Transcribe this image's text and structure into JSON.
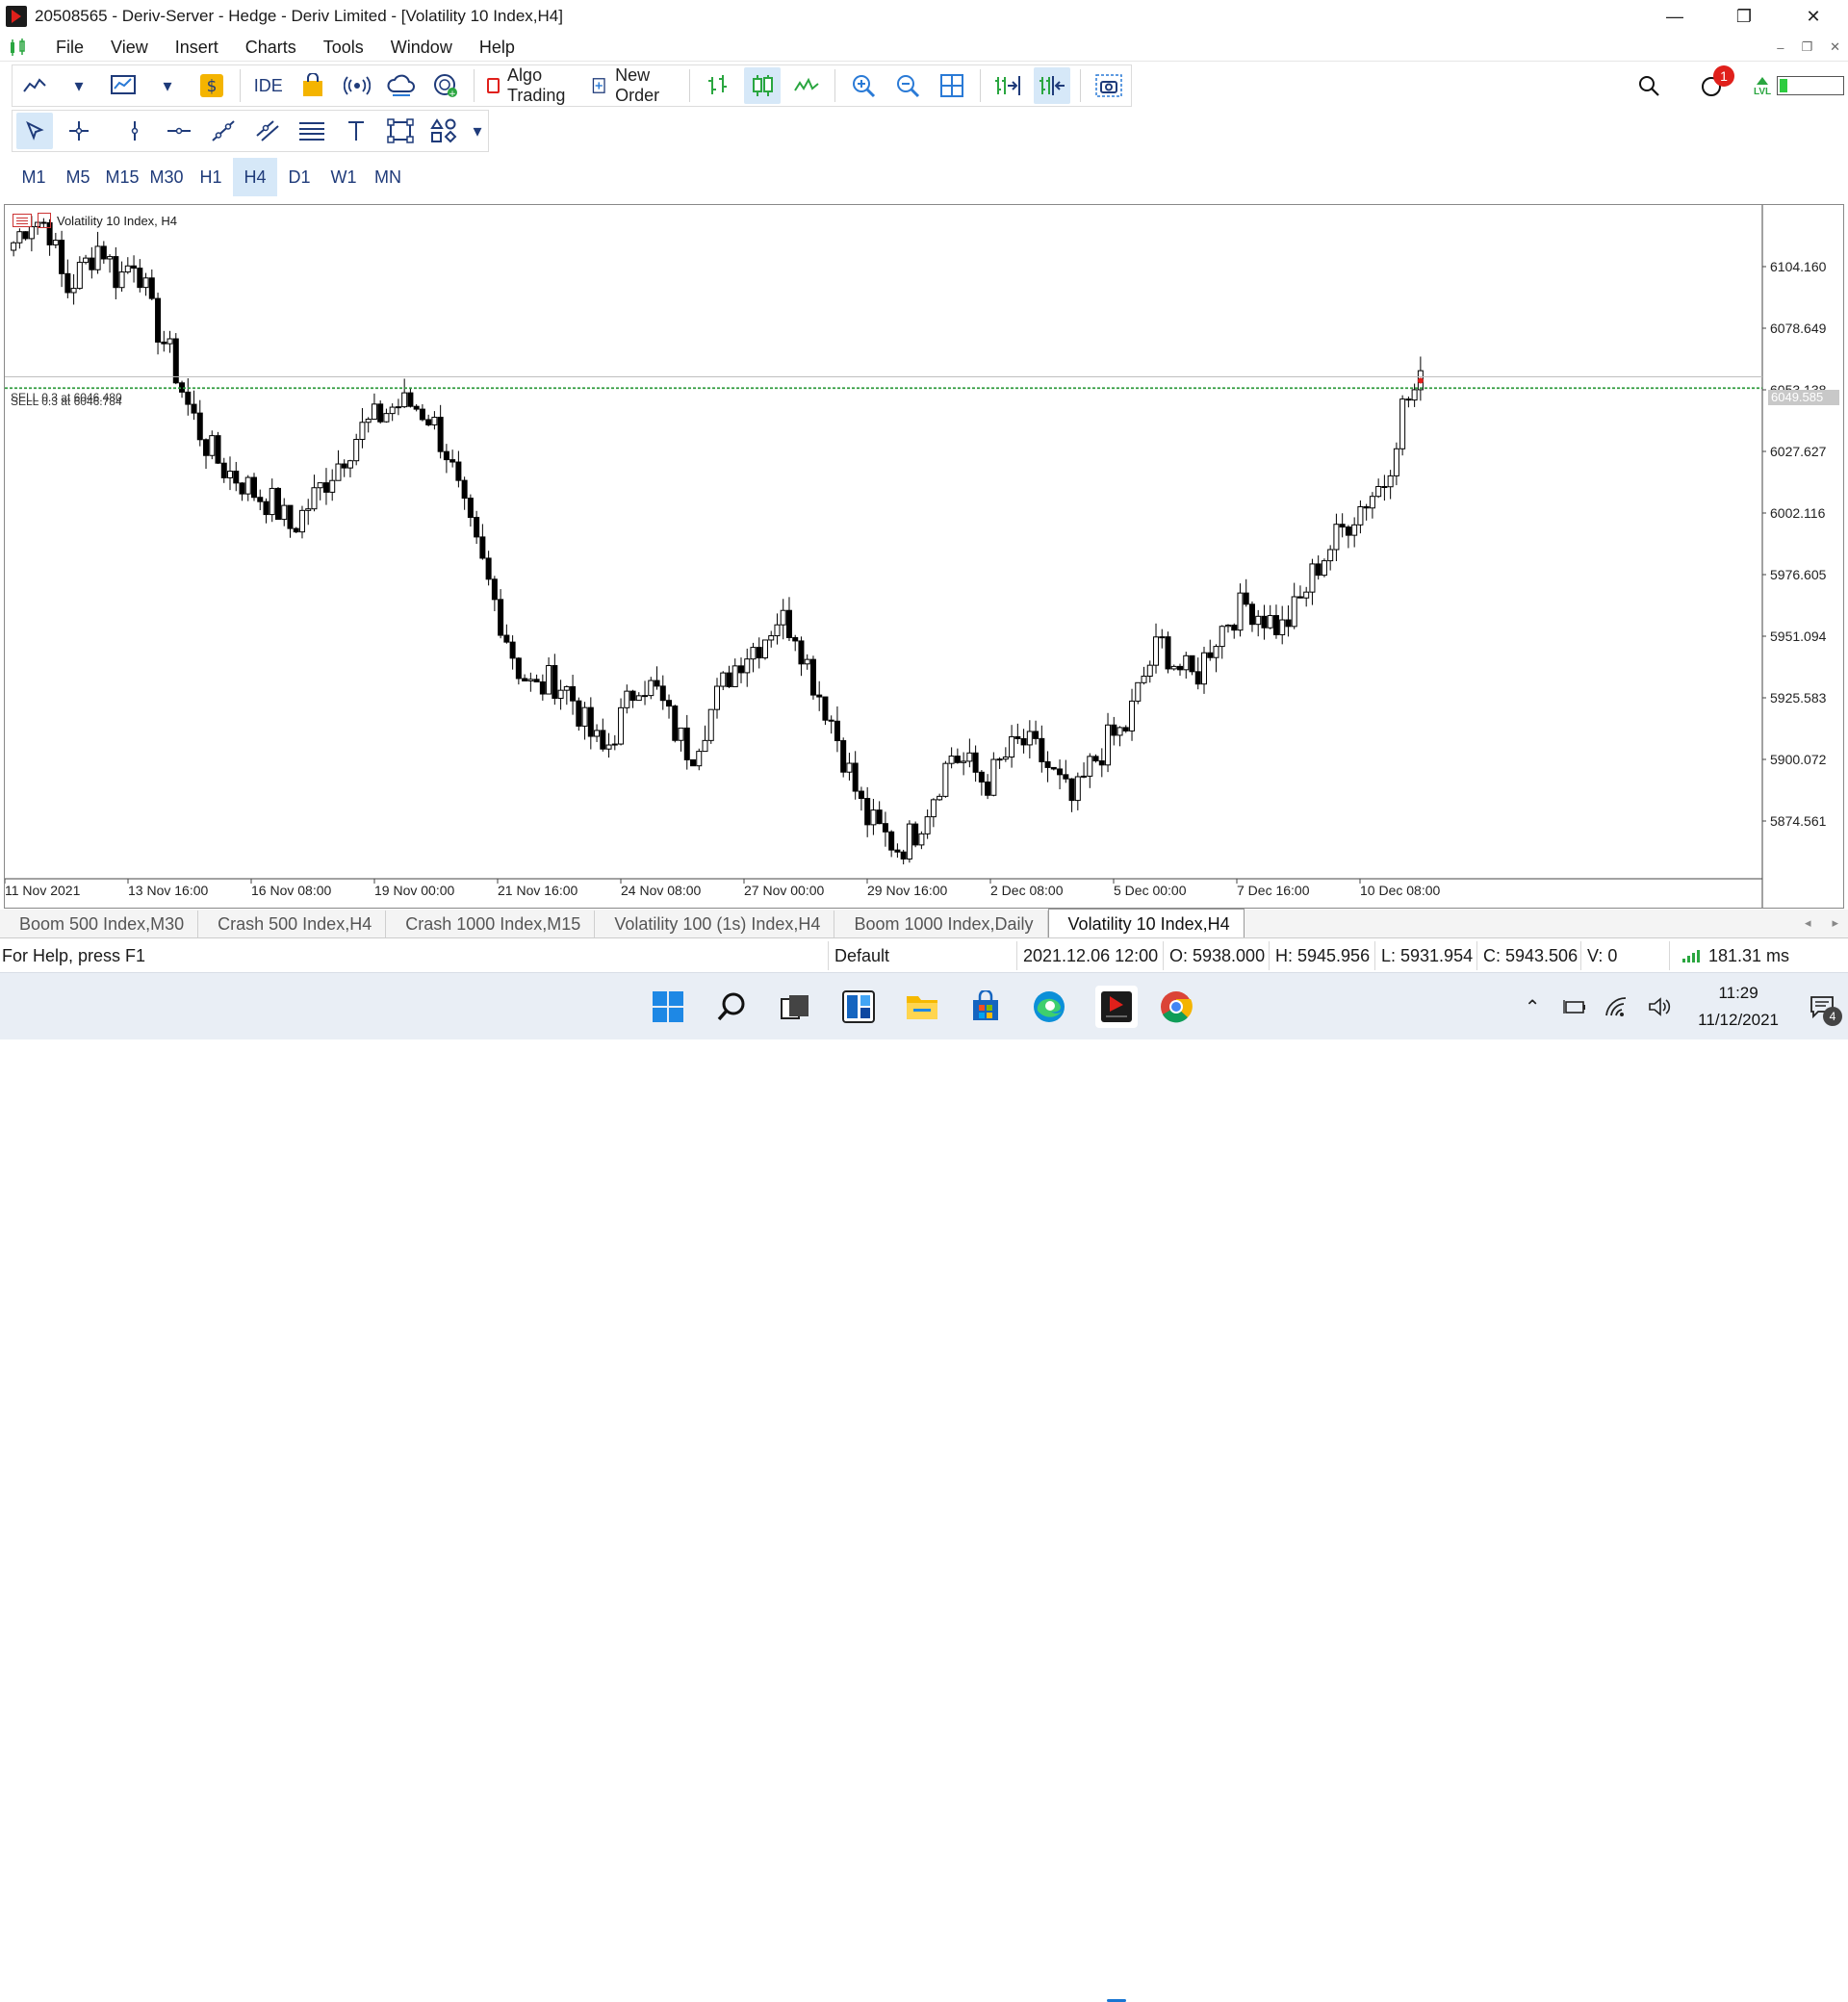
{
  "window": {
    "title": "20508565 - Deriv-Server - Hedge - Deriv Limited - [Volatility 10 Index,H4]",
    "controls": [
      "minimize-icon",
      "restore-icon",
      "close-icon"
    ]
  },
  "menu": {
    "items": [
      "File",
      "View",
      "Insert",
      "Charts",
      "Tools",
      "Window",
      "Help"
    ]
  },
  "toolbar": {
    "ide_label": "IDE",
    "algo_trading_label": "Algo Trading",
    "new_order_label": "New Order",
    "notification_count": "1",
    "lvl_label": "LVL"
  },
  "timeframes": {
    "items": [
      "M1",
      "M5",
      "M15",
      "M30",
      "H1",
      "H4",
      "D1",
      "W1",
      "MN"
    ],
    "active": "H4"
  },
  "chart": {
    "symbol_label": "Volatility 10 Index, H4",
    "orders": [
      "SELL 0.3 at 6046.480",
      "SELL 0.3 at 6046.784"
    ],
    "current_price": "6049.585",
    "colors": {
      "bull": "#ffffff",
      "bear": "#000000",
      "order_line": "#2e9a3c",
      "bid_line": "#bfbfbf"
    }
  },
  "chart_data": {
    "type": "candlestick",
    "title": "Volatility 10 Index, H4",
    "price_axis_labels": [
      "6104.160",
      "6078.649",
      "6053.138",
      "6027.627",
      "6002.116",
      "5976.605",
      "5951.094",
      "5925.583",
      "5900.072",
      "5874.561"
    ],
    "time_axis_labels": [
      "11 Nov 2021",
      "13 Nov 16:00",
      "16 Nov 08:00",
      "19 Nov 00:00",
      "21 Nov 16:00",
      "24 Nov 08:00",
      "27 Nov 00:00",
      "29 Nov 16:00",
      "2 Dec 08:00",
      "5 Dec 00:00",
      "7 Dec 16:00",
      "10 Dec 08:00"
    ],
    "ylim": [
      5850,
      6120
    ],
    "close_path": [
      6105,
      6115,
      6112,
      6085,
      6095,
      6105,
      6090,
      6100,
      6075,
      6060,
      6040,
      6025,
      6015,
      6010,
      6004,
      6000,
      5990,
      6000,
      6010,
      6020,
      6030,
      6035,
      6040,
      6040,
      6035,
      6020,
      5995,
      5975,
      5955,
      5935,
      5925,
      5930,
      5925,
      5910,
      5900,
      5915,
      5930,
      5925,
      5910,
      5900,
      5915,
      5930,
      5940,
      5945,
      5955,
      5950,
      5930,
      5915,
      5895,
      5875,
      5868,
      5862,
      5870,
      5885,
      5900,
      5895,
      5888,
      5898,
      5905,
      5900,
      5890,
      5880,
      5895,
      5905,
      5910,
      5930,
      5945,
      5935,
      5930,
      5945,
      5955,
      5960,
      5955,
      5950,
      5960,
      5975,
      5985,
      5995,
      6003,
      6010,
      6040,
      6048
    ],
    "sample_ohlc": {
      "time": "2021.12.06 12:00",
      "open": 5938.0,
      "high": 5945.956,
      "low": 5931.954,
      "close": 5943.506,
      "volume": 0
    },
    "orders": [
      6046.48,
      6046.784
    ],
    "current_price": 6049.585
  },
  "tabs": [
    {
      "label": "Boom 500 Index,M30",
      "active": false
    },
    {
      "label": "Crash 500 Index,H4",
      "active": false
    },
    {
      "label": "Crash 1000 Index,M15",
      "active": false
    },
    {
      "label": "Volatility 100 (1s) Index,H4",
      "active": false
    },
    {
      "label": "Boom 1000 Index,Daily",
      "active": false
    },
    {
      "label": "Volatility 10 Index,H4",
      "active": true
    }
  ],
  "status": {
    "help": "For Help, press F1",
    "profile": "Default",
    "time": "2021.12.06 12:00",
    "open": "O: 5938.000",
    "high": "H: 5945.956",
    "low": "L: 5931.954",
    "close": "C: 5943.506",
    "volume": "V: 0",
    "ping": "181.31 ms"
  },
  "taskbar": {
    "clock_time": "11:29",
    "clock_date": "11/12/2021",
    "notification_count": "4",
    "apps": [
      "windows-start-icon",
      "search-icon",
      "task-view-icon",
      "widgets-icon",
      "file-explorer-icon",
      "microsoft-store-icon",
      "edge-icon",
      "metatrader-icon",
      "chrome-icon"
    ]
  }
}
